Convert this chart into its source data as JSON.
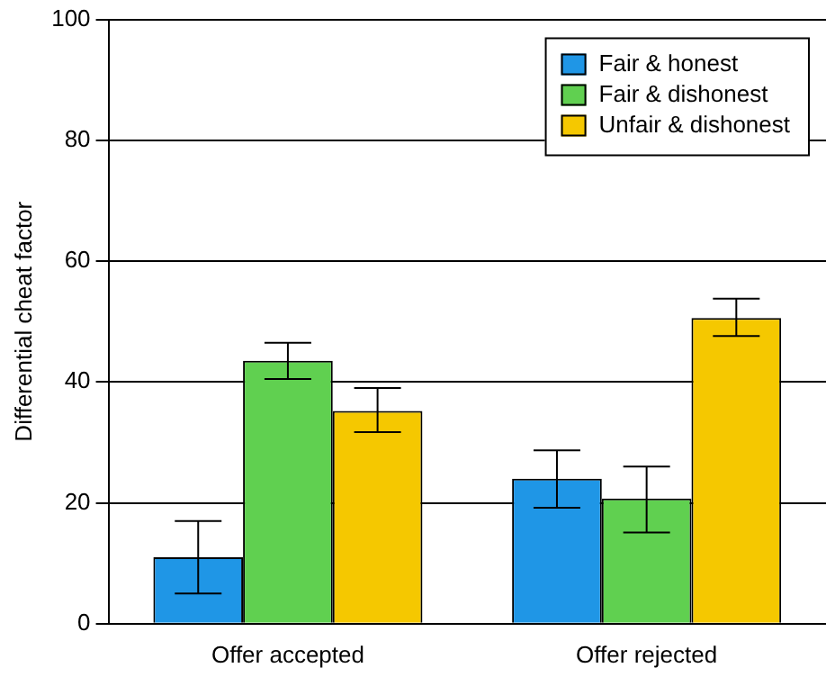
{
  "chart_data": {
    "type": "bar",
    "ylabel": "Differential cheat factor",
    "categories": [
      "Offer accepted",
      "Offer rejected"
    ],
    "series": [
      {
        "name": "Fair & honest",
        "color": "#1f96e6",
        "values": [
          11,
          24
        ],
        "errors": [
          [
            5,
            17
          ],
          [
            19.2,
            28.7
          ]
        ]
      },
      {
        "name": "Fair & dishonest",
        "color": "#60d050",
        "values": [
          43.5,
          20.7
        ],
        "errors": [
          [
            40.5,
            46.5
          ],
          [
            15.1,
            26
          ]
        ]
      },
      {
        "name": "Unfair & dishonest",
        "color": "#f5c800",
        "values": [
          35.2,
          50.6
        ],
        "errors": [
          [
            31.7,
            39
          ],
          [
            47.6,
            53.8
          ]
        ]
      }
    ],
    "ylim": [
      0,
      100
    ],
    "yticks": [
      0,
      20,
      40,
      60,
      80,
      100
    ],
    "grid": "y",
    "legend": "top right"
  }
}
